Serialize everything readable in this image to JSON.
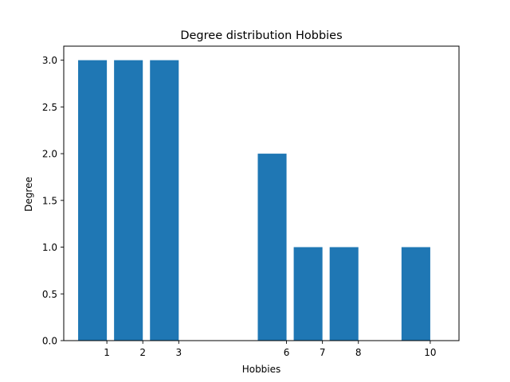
{
  "chart_data": {
    "type": "bar",
    "title": "Degree distribution Hobbies",
    "xlabel": "Hobbies",
    "ylabel": "Degree",
    "bars": [
      {
        "x": 0,
        "value": 3
      },
      {
        "x": 1,
        "value": 3
      },
      {
        "x": 2,
        "value": 3
      },
      {
        "x": 5,
        "value": 2
      },
      {
        "x": 6,
        "value": 1
      },
      {
        "x": 7,
        "value": 1
      },
      {
        "x": 9,
        "value": 1
      }
    ],
    "xticks": [
      {
        "x": 0.4,
        "label": "1"
      },
      {
        "x": 1.4,
        "label": "2"
      },
      {
        "x": 2.4,
        "label": "3"
      },
      {
        "x": 5.4,
        "label": "6"
      },
      {
        "x": 6.4,
        "label": "7"
      },
      {
        "x": 7.4,
        "label": "8"
      },
      {
        "x": 9.4,
        "label": "10"
      }
    ],
    "bar_width": 0.8,
    "xlim": [
      -0.8,
      10.2
    ],
    "ylim": [
      0,
      3.15
    ],
    "yticks": [
      {
        "value": 0.0,
        "label": "0.0"
      },
      {
        "value": 0.5,
        "label": "0.5"
      },
      {
        "value": 1.0,
        "label": "1.0"
      },
      {
        "value": 1.5,
        "label": "1.5"
      },
      {
        "value": 2.0,
        "label": "2.0"
      },
      {
        "value": 2.5,
        "label": "2.5"
      },
      {
        "value": 3.0,
        "label": "3.0"
      }
    ],
    "grid": false,
    "colors": {
      "bar": "#1f77b4",
      "axis": "#000000",
      "background": "#ffffff"
    }
  }
}
